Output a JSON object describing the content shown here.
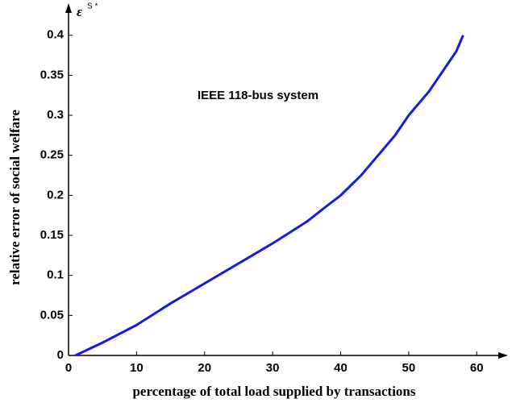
{
  "chart_data": {
    "type": "line",
    "annotation": "IEEE 118-bus system",
    "y_symbol": "ε",
    "y_symbol_superscript": "S *",
    "xlabel": "percentage of total load supplied by transactions",
    "ylabel": "relative error of social welfare",
    "x": [
      1,
      5,
      10,
      15,
      20,
      25,
      30,
      35,
      38,
      40,
      43,
      45,
      48,
      50,
      53,
      55,
      57,
      58
    ],
    "series": [
      {
        "name": "IEEE 118-bus system",
        "color": "#1a1adc",
        "values": [
          0,
          0.016,
          0.038,
          0.065,
          0.09,
          0.115,
          0.14,
          0.167,
          0.187,
          0.2,
          0.225,
          0.245,
          0.275,
          0.3,
          0.33,
          0.355,
          0.38,
          0.4
        ]
      }
    ],
    "xlim": [
      0,
      64
    ],
    "ylim": [
      0,
      0.435
    ],
    "xticks": [
      0,
      10,
      20,
      30,
      40,
      50,
      60
    ],
    "yticks": [
      0,
      0.05,
      0.1,
      0.15,
      0.2,
      0.25,
      0.3,
      0.35,
      0.4
    ]
  }
}
